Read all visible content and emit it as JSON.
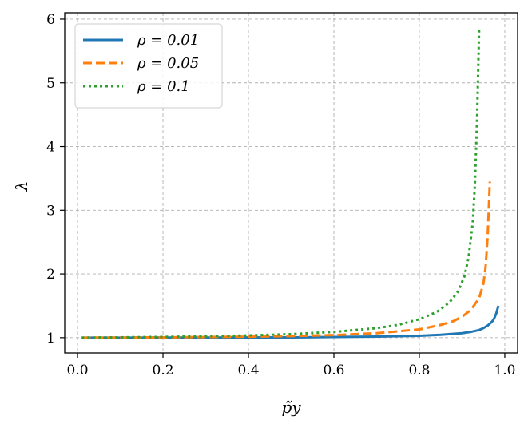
{
  "chart_data": {
    "type": "line",
    "title": "",
    "xlabel": "p̃y",
    "ylabel": "λ",
    "xlim": [
      -0.03,
      1.03
    ],
    "ylim": [
      0.76,
      6.1
    ],
    "xticks": [
      0.0,
      0.2,
      0.4,
      0.6,
      0.8,
      1.0
    ],
    "xtick_labels": [
      "0.0",
      "0.2",
      "0.4",
      "0.6",
      "0.8",
      "1.0"
    ],
    "yticks": [
      1,
      2,
      3,
      4,
      5,
      6
    ],
    "ytick_labels": [
      "1",
      "2",
      "3",
      "4",
      "5",
      "6"
    ],
    "grid": true,
    "legend_position": "top-left",
    "series": [
      {
        "name": "ρ = 0.01",
        "color": "#1f77b4",
        "style": "solid",
        "x": [
          0.01,
          0.1,
          0.2,
          0.3,
          0.4,
          0.5,
          0.6,
          0.7,
          0.8,
          0.85,
          0.9,
          0.92,
          0.94,
          0.95,
          0.96,
          0.97,
          0.975,
          0.98,
          0.985
        ],
        "y": [
          1.0,
          1.0,
          1.001,
          1.002,
          1.003,
          1.005,
          1.01,
          1.017,
          1.03,
          1.045,
          1.07,
          1.09,
          1.12,
          1.15,
          1.19,
          1.25,
          1.3,
          1.38,
          1.5
        ]
      },
      {
        "name": "ρ = 0.05",
        "color": "#ff7f0e",
        "style": "dashed",
        "x": [
          0.01,
          0.1,
          0.2,
          0.3,
          0.4,
          0.5,
          0.6,
          0.7,
          0.8,
          0.85,
          0.88,
          0.9,
          0.92,
          0.94,
          0.95,
          0.955,
          0.96,
          0.965
        ],
        "y": [
          1.0,
          1.002,
          1.005,
          1.01,
          1.016,
          1.025,
          1.04,
          1.07,
          1.13,
          1.2,
          1.26,
          1.33,
          1.43,
          1.62,
          1.85,
          2.1,
          2.6,
          3.45
        ]
      },
      {
        "name": "ρ = 0.1",
        "color": "#2ca02c",
        "style": "dotted",
        "x": [
          0.01,
          0.1,
          0.2,
          0.3,
          0.4,
          0.5,
          0.6,
          0.7,
          0.75,
          0.8,
          0.84,
          0.87,
          0.89,
          0.905,
          0.915,
          0.925,
          0.93,
          0.935,
          0.94
        ],
        "y": [
          1.0,
          1.005,
          1.012,
          1.022,
          1.035,
          1.055,
          1.09,
          1.15,
          1.2,
          1.29,
          1.4,
          1.55,
          1.72,
          1.95,
          2.25,
          2.8,
          3.4,
          4.4,
          5.85
        ]
      }
    ]
  }
}
